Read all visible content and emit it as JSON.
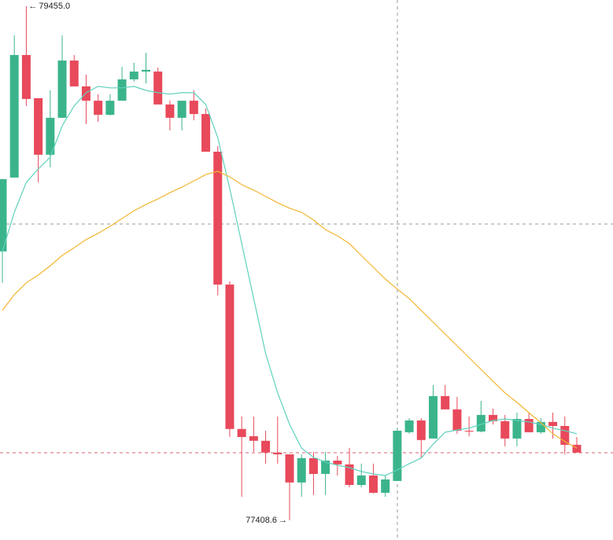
{
  "chart_data": {
    "type": "candlestick",
    "ylim": [
      77330,
      79480
    ],
    "up_color": "#3bb48c",
    "down_color": "#e8495b",
    "open": [
      78479,
      78773,
      79261,
      79089,
      78864,
      79011,
      79239,
      79136,
      79079,
      79023,
      79079,
      79164,
      79195,
      79195,
      79064,
      79011,
      79079,
      79026,
      78876,
      78347,
      77772,
      77743,
      77725,
      77678,
      77671,
      77559,
      77656,
      77593,
      77646,
      77631,
      77549,
      77587,
      77518,
      77565,
      77759,
      77806,
      77734,
      77903,
      77850,
      77765,
      77762,
      77828,
      77803,
      77734,
      77812,
      77759,
      77800,
      77784,
      77709
    ],
    "high": [
      78767,
      79339,
      79455,
      79089,
      79120,
      79339,
      79261,
      79183,
      79105,
      79105,
      79214,
      79230,
      79270,
      79211,
      79079,
      79079,
      79120,
      79048,
      78898,
      78360,
      77822,
      77822,
      77765,
      77822,
      77671,
      77671,
      77681,
      77681,
      77665,
      77697,
      77634,
      77634,
      77587,
      77775,
      77815,
      77815,
      77947,
      77947,
      77900,
      77822,
      77884,
      77853,
      77828,
      77837,
      77837,
      77815,
      77837,
      77822,
      77740
    ],
    "low": [
      78354,
      78773,
      79058,
      78754,
      78814,
      79011,
      79136,
      78986,
      78995,
      79020,
      79079,
      79155,
      79148,
      79064,
      78961,
      78961,
      79001,
      78876,
      78304,
      77740,
      77502,
      77681,
      77634,
      77634,
      77408.6,
      77502,
      77509,
      77509,
      77587,
      77540,
      77540,
      77515,
      77502,
      77565,
      77753,
      77656,
      77734,
      77850,
      77753,
      77743,
      77759,
      77790,
      77703,
      77703,
      77759,
      77753,
      77734,
      77671,
      77678
    ],
    "close": [
      78767,
      79261,
      79086,
      78864,
      79011,
      79239,
      79136,
      79079,
      79023,
      79079,
      79164,
      79195,
      79202,
      79064,
      79011,
      79079,
      79026,
      78876,
      78347,
      77772,
      77740,
      77725,
      77678,
      77671,
      77559,
      77656,
      77593,
      77646,
      77631,
      77549,
      77587,
      77518,
      77571,
      77765,
      77806,
      77728,
      77903,
      77850,
      77765,
      77762,
      77828,
      77803,
      77734,
      77812,
      77759,
      77800,
      77784,
      77709,
      77678
    ],
    "ma_lines": [
      {
        "color": "#5fd1bd",
        "values": [
          78479,
          78635,
          78754,
          78807,
          78854,
          78979,
          79058,
          79111,
          79136,
          79130,
          79130,
          79136,
          79120,
          79111,
          79105,
          79111,
          79111,
          79064,
          78932,
          78729,
          78510,
          78291,
          78072,
          77916,
          77790,
          77696,
          77659,
          77640,
          77628,
          77618,
          77603,
          77593,
          77587,
          77609,
          77634,
          77656,
          77712,
          77759,
          77768,
          77775,
          77790,
          77806,
          77812,
          77806,
          77800,
          77790,
          77775,
          77765,
          77753
        ]
      },
      {
        "color": "#f2b632",
        "values": [
          78244,
          78307,
          78354,
          78385,
          78422,
          78463,
          78494,
          78526,
          78551,
          78579,
          78610,
          78641,
          78666,
          78688,
          78713,
          78735,
          78760,
          78785,
          78798,
          78776,
          78745,
          78723,
          78698,
          78673,
          78651,
          78635,
          78604,
          78566,
          78541,
          78510,
          78463,
          78416,
          78369,
          78329,
          78291,
          78244,
          78197,
          78150,
          78103,
          78056,
          78009,
          77962,
          77916,
          77878,
          77837,
          77797,
          77753,
          77722,
          77696
        ]
      }
    ],
    "annotations": [
      {
        "value": 79455,
        "label": "79455.0"
      },
      {
        "value": 77408.6,
        "label": "77408.6"
      }
    ]
  }
}
